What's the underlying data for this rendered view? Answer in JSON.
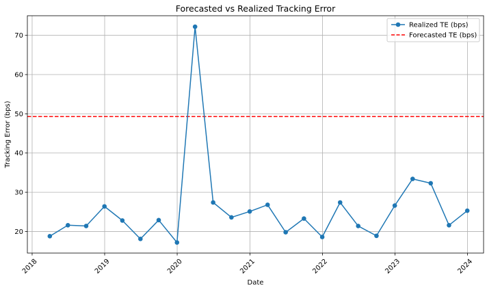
{
  "chart_data": {
    "type": "line",
    "title": "Forecasted vs Realized Tracking Error",
    "xlabel": "Date",
    "ylabel": "Tracking Error (bps)",
    "xlim": [
      "2017-12-08",
      "2024-03-22"
    ],
    "ylim": [
      14.5,
      75
    ],
    "x_ticks": [
      "2018-01-01",
      "2019-01-01",
      "2020-01-01",
      "2021-01-01",
      "2022-01-01",
      "2023-01-01",
      "2024-01-01"
    ],
    "x_tick_labels": [
      "2018",
      "2019",
      "2020",
      "2021",
      "2022",
      "2023",
      "2024"
    ],
    "y_ticks": [
      20,
      30,
      40,
      50,
      60,
      70
    ],
    "y_tick_labels": [
      "20",
      "30",
      "40",
      "50",
      "60",
      "70"
    ],
    "grid": true,
    "legend_position": "top-right",
    "series": [
      {
        "name": "Realized TE (bps)",
        "style": "solid-line-with-markers",
        "color": "#1f77b4",
        "x": [
          "2018-03-31",
          "2018-06-30",
          "2018-09-30",
          "2018-12-31",
          "2019-03-31",
          "2019-06-30",
          "2019-09-30",
          "2019-12-31",
          "2020-03-31",
          "2020-06-30",
          "2020-09-30",
          "2020-12-31",
          "2021-03-31",
          "2021-06-30",
          "2021-09-30",
          "2021-12-31",
          "2022-03-31",
          "2022-06-30",
          "2022-09-30",
          "2022-12-31",
          "2023-03-31",
          "2023-06-30",
          "2023-09-30",
          "2023-12-31"
        ],
        "values": [
          18.8,
          21.6,
          21.4,
          26.4,
          22.8,
          18.1,
          22.9,
          17.2,
          72.2,
          27.4,
          23.6,
          25.1,
          26.8,
          19.8,
          23.3,
          18.6,
          27.4,
          21.4,
          18.9,
          26.6,
          33.4,
          32.3,
          21.6,
          25.3
        ]
      },
      {
        "name": "Forecasted TE (bps)",
        "style": "dashed-horizontal",
        "color": "#ff0000",
        "value": 49.3
      }
    ]
  }
}
